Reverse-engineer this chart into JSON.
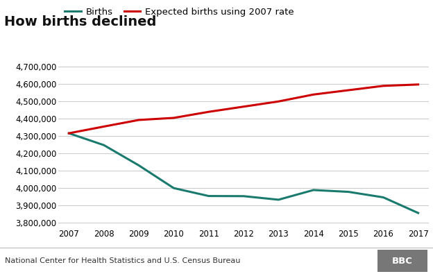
{
  "title": "How births declined",
  "years": [
    2007,
    2008,
    2009,
    2010,
    2011,
    2012,
    2013,
    2014,
    2015,
    2016,
    2017
  ],
  "births": [
    4316233,
    4247694,
    4130665,
    3999386,
    3953590,
    3952841,
    3932181,
    3988076,
    3977745,
    3945875,
    3855500
  ],
  "expected": [
    4316233,
    4355000,
    4393000,
    4405000,
    4440000,
    4470000,
    4500000,
    4540000,
    4565000,
    4590000,
    4598000
  ],
  "births_color": "#1a7a6e",
  "expected_color": "#cc0000",
  "births_label": "Births",
  "expected_label": "Expected births using 2007 rate",
  "ylabel_ticks": [
    3800000,
    3900000,
    4000000,
    4100000,
    4200000,
    4300000,
    4400000,
    4500000,
    4600000,
    4700000
  ],
  "ylim": [
    3780000,
    4730000
  ],
  "xlim": [
    2006.7,
    2017.3
  ],
  "source_text": "National Center for Health Statistics and U.S. Census Bureau",
  "background_color": "#ffffff",
  "grid_color": "#cccccc",
  "footer_bg": "#e6e6e6",
  "bbc_box_color": "#777777",
  "bbc_label": "BBC",
  "line_width": 2.2,
  "title_fontsize": 14,
  "legend_fontsize": 9.5,
  "tick_fontsize": 8.5,
  "source_fontsize": 8
}
